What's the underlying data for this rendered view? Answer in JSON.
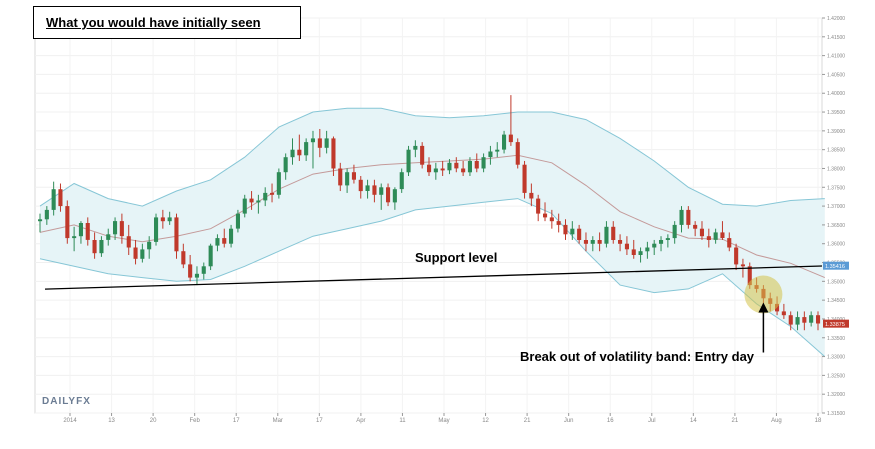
{
  "title": "What you would have initially seen",
  "brand": "DAILYFX",
  "colors": {
    "up": "#2e8b57",
    "down": "#c0392b",
    "band_fill": "#e6f4f7",
    "band_line": "#86c6d6",
    "midline": "#c49a9a",
    "support": "#000000",
    "highlight": "#d4c24a",
    "price_tag_red": "#c0392b",
    "price_tag_blue": "#5b9bd5"
  },
  "chart_data": {
    "type": "candlestick",
    "title": "",
    "xlabel": "",
    "ylabel": "",
    "x_tick_labels": [
      "2014",
      "13",
      "20",
      "Feb",
      "17",
      "Mar",
      "17",
      "Apr",
      "11",
      "May",
      "12",
      "21",
      "Jun",
      "16",
      "Jul",
      "14",
      "21",
      "Aug",
      "18"
    ],
    "y_tick_labels": [
      "1.42000",
      "1.41500",
      "1.41000",
      "1.40500",
      "1.40000",
      "1.39500",
      "1.39000",
      "1.38500",
      "1.38000",
      "1.37500",
      "1.37000",
      "1.36500",
      "1.36000",
      "1.35500",
      "1.35000",
      "1.34500",
      "1.34000",
      "1.33500",
      "1.33000",
      "1.32500",
      "1.32000",
      "1.31500"
    ],
    "ylim": [
      1.315,
      1.42
    ],
    "price_tags": [
      "1.35416",
      "1.33875"
    ],
    "grid": true,
    "annotations": {
      "support": "Support level",
      "entry": "Break out of volatility band: Entry day"
    },
    "ohlc": [
      [
        1.366,
        1.368,
        1.363,
        1.3665
      ],
      [
        1.3665,
        1.37,
        1.365,
        1.369
      ],
      [
        1.369,
        1.3765,
        1.3675,
        1.3745
      ],
      [
        1.3745,
        1.376,
        1.3685,
        1.37
      ],
      [
        1.37,
        1.3715,
        1.36,
        1.3615
      ],
      [
        1.3615,
        1.3645,
        1.358,
        1.362
      ],
      [
        1.362,
        1.366,
        1.36,
        1.3655
      ],
      [
        1.3655,
        1.367,
        1.3595,
        1.361
      ],
      [
        1.361,
        1.363,
        1.356,
        1.3575
      ],
      [
        1.3575,
        1.362,
        1.3565,
        1.361
      ],
      [
        1.361,
        1.364,
        1.3595,
        1.3625
      ],
      [
        1.3625,
        1.367,
        1.361,
        1.366
      ],
      [
        1.366,
        1.368,
        1.36,
        1.362
      ],
      [
        1.362,
        1.365,
        1.357,
        1.359
      ],
      [
        1.359,
        1.361,
        1.3545,
        1.356
      ],
      [
        1.356,
        1.36,
        1.355,
        1.3585
      ],
      [
        1.3585,
        1.362,
        1.356,
        1.3605
      ],
      [
        1.3605,
        1.368,
        1.3595,
        1.367
      ],
      [
        1.367,
        1.369,
        1.364,
        1.366
      ],
      [
        1.366,
        1.3685,
        1.365,
        1.367
      ],
      [
        1.367,
        1.368,
        1.356,
        1.358
      ],
      [
        1.358,
        1.36,
        1.3535,
        1.3545
      ],
      [
        1.3545,
        1.357,
        1.35,
        1.351
      ],
      [
        1.351,
        1.354,
        1.349,
        1.352
      ],
      [
        1.352,
        1.355,
        1.3505,
        1.354
      ],
      [
        1.354,
        1.36,
        1.353,
        1.3595
      ],
      [
        1.3595,
        1.3625,
        1.358,
        1.3615
      ],
      [
        1.3615,
        1.364,
        1.359,
        1.36
      ],
      [
        1.36,
        1.365,
        1.359,
        1.364
      ],
      [
        1.364,
        1.369,
        1.363,
        1.368
      ],
      [
        1.368,
        1.373,
        1.367,
        1.372
      ],
      [
        1.372,
        1.374,
        1.369,
        1.371
      ],
      [
        1.371,
        1.373,
        1.368,
        1.3715
      ],
      [
        1.3715,
        1.375,
        1.37,
        1.3735
      ],
      [
        1.3735,
        1.376,
        1.371,
        1.373
      ],
      [
        1.373,
        1.38,
        1.372,
        1.379
      ],
      [
        1.379,
        1.384,
        1.377,
        1.383
      ],
      [
        1.383,
        1.388,
        1.381,
        1.385
      ],
      [
        1.385,
        1.389,
        1.382,
        1.3835
      ],
      [
        1.3835,
        1.388,
        1.382,
        1.387
      ],
      [
        1.387,
        1.39,
        1.38,
        1.388
      ],
      [
        1.388,
        1.3905,
        1.383,
        1.3855
      ],
      [
        1.3855,
        1.39,
        1.384,
        1.388
      ],
      [
        1.388,
        1.3885,
        1.378,
        1.38
      ],
      [
        1.38,
        1.3815,
        1.374,
        1.3755
      ],
      [
        1.3755,
        1.38,
        1.3735,
        1.379
      ],
      [
        1.379,
        1.381,
        1.376,
        1.377
      ],
      [
        1.377,
        1.378,
        1.372,
        1.374
      ],
      [
        1.374,
        1.377,
        1.372,
        1.3755
      ],
      [
        1.3755,
        1.377,
        1.371,
        1.373
      ],
      [
        1.373,
        1.376,
        1.369,
        1.375
      ],
      [
        1.375,
        1.376,
        1.37,
        1.371
      ],
      [
        1.371,
        1.375,
        1.369,
        1.3745
      ],
      [
        1.3745,
        1.38,
        1.3735,
        1.379
      ],
      [
        1.379,
        1.386,
        1.378,
        1.385
      ],
      [
        1.385,
        1.3875,
        1.383,
        1.386
      ],
      [
        1.386,
        1.387,
        1.38,
        1.381
      ],
      [
        1.381,
        1.383,
        1.378,
        1.379
      ],
      [
        1.379,
        1.3815,
        1.377,
        1.38
      ],
      [
        1.38,
        1.382,
        1.378,
        1.3795
      ],
      [
        1.3795,
        1.3825,
        1.3785,
        1.3815
      ],
      [
        1.3815,
        1.383,
        1.379,
        1.38
      ],
      [
        1.38,
        1.382,
        1.378,
        1.379
      ],
      [
        1.379,
        1.383,
        1.378,
        1.382
      ],
      [
        1.382,
        1.384,
        1.379,
        1.38
      ],
      [
        1.38,
        1.384,
        1.379,
        1.383
      ],
      [
        1.383,
        1.386,
        1.381,
        1.3845
      ],
      [
        1.3845,
        1.387,
        1.383,
        1.385
      ],
      [
        1.385,
        1.39,
        1.384,
        1.389
      ],
      [
        1.389,
        1.3995,
        1.386,
        1.387
      ],
      [
        1.387,
        1.388,
        1.38,
        1.381
      ],
      [
        1.381,
        1.382,
        1.372,
        1.3735
      ],
      [
        1.3735,
        1.376,
        1.37,
        1.372
      ],
      [
        1.372,
        1.373,
        1.366,
        1.368
      ],
      [
        1.368,
        1.371,
        1.366,
        1.367
      ],
      [
        1.367,
        1.369,
        1.364,
        1.366
      ],
      [
        1.366,
        1.368,
        1.363,
        1.365
      ],
      [
        1.365,
        1.3665,
        1.361,
        1.3625
      ],
      [
        1.3625,
        1.366,
        1.361,
        1.364
      ],
      [
        1.364,
        1.365,
        1.36,
        1.361
      ],
      [
        1.361,
        1.363,
        1.358,
        1.36
      ],
      [
        1.36,
        1.362,
        1.358,
        1.361
      ],
      [
        1.361,
        1.363,
        1.358,
        1.36
      ],
      [
        1.36,
        1.366,
        1.359,
        1.3645
      ],
      [
        1.3645,
        1.366,
        1.36,
        1.361
      ],
      [
        1.361,
        1.3625,
        1.358,
        1.36
      ],
      [
        1.36,
        1.362,
        1.357,
        1.3585
      ],
      [
        1.3585,
        1.361,
        1.356,
        1.357
      ],
      [
        1.357,
        1.359,
        1.355,
        1.358
      ],
      [
        1.358,
        1.3605,
        1.356,
        1.359
      ],
      [
        1.359,
        1.361,
        1.357,
        1.36
      ],
      [
        1.36,
        1.362,
        1.358,
        1.361
      ],
      [
        1.361,
        1.3625,
        1.359,
        1.3615
      ],
      [
        1.3615,
        1.366,
        1.36,
        1.365
      ],
      [
        1.365,
        1.37,
        1.363,
        1.369
      ],
      [
        1.369,
        1.37,
        1.364,
        1.365
      ],
      [
        1.365,
        1.366,
        1.362,
        1.364
      ],
      [
        1.364,
        1.366,
        1.361,
        1.362
      ],
      [
        1.362,
        1.364,
        1.359,
        1.361
      ],
      [
        1.361,
        1.364,
        1.36,
        1.363
      ],
      [
        1.363,
        1.366,
        1.361,
        1.3615
      ],
      [
        1.3615,
        1.363,
        1.358,
        1.359
      ],
      [
        1.359,
        1.36,
        1.353,
        1.3545
      ],
      [
        1.3545,
        1.356,
        1.351,
        1.354
      ],
      [
        1.354,
        1.355,
        1.348,
        1.349
      ],
      [
        1.349,
        1.351,
        1.347,
        1.348
      ],
      [
        1.348,
        1.349,
        1.344,
        1.3455
      ],
      [
        1.3455,
        1.347,
        1.342,
        1.344
      ],
      [
        1.344,
        1.346,
        1.341,
        1.342
      ],
      [
        1.342,
        1.344,
        1.34,
        1.341
      ],
      [
        1.341,
        1.342,
        1.337,
        1.3385
      ],
      [
        1.3385,
        1.342,
        1.337,
        1.3405
      ],
      [
        1.3405,
        1.342,
        1.337,
        1.339
      ],
      [
        1.339,
        1.342,
        1.338,
        1.341
      ],
      [
        1.341,
        1.342,
        1.337,
        1.3388
      ]
    ],
    "bollinger_upper": [
      [
        0,
        1.37
      ],
      [
        5,
        1.376
      ],
      [
        10,
        1.372
      ],
      [
        15,
        1.37
      ],
      [
        20,
        1.374
      ],
      [
        25,
        1.377
      ],
      [
        30,
        1.383
      ],
      [
        35,
        1.391
      ],
      [
        40,
        1.395
      ],
      [
        45,
        1.396
      ],
      [
        50,
        1.396
      ],
      [
        55,
        1.394
      ],
      [
        60,
        1.3935
      ],
      [
        65,
        1.394
      ],
      [
        70,
        1.395
      ],
      [
        75,
        1.395
      ],
      [
        80,
        1.393
      ],
      [
        85,
        1.388
      ],
      [
        90,
        1.382
      ],
      [
        95,
        1.375
      ],
      [
        100,
        1.3705
      ],
      [
        105,
        1.37
      ],
      [
        110,
        1.3715
      ],
      [
        115,
        1.372
      ]
    ],
    "bollinger_lower": [
      [
        0,
        1.356
      ],
      [
        5,
        1.354
      ],
      [
        10,
        1.352
      ],
      [
        15,
        1.351
      ],
      [
        20,
        1.35
      ],
      [
        25,
        1.3505
      ],
      [
        30,
        1.354
      ],
      [
        35,
        1.358
      ],
      [
        40,
        1.362
      ],
      [
        45,
        1.364
      ],
      [
        50,
        1.366
      ],
      [
        55,
        1.369
      ],
      [
        60,
        1.37
      ],
      [
        65,
        1.371
      ],
      [
        70,
        1.372
      ],
      [
        75,
        1.368
      ],
      [
        80,
        1.358
      ],
      [
        85,
        1.349
      ],
      [
        90,
        1.347
      ],
      [
        95,
        1.348
      ],
      [
        100,
        1.352
      ],
      [
        105,
        1.344
      ],
      [
        110,
        1.338
      ],
      [
        115,
        1.33
      ]
    ],
    "bollinger_middle": [
      [
        0,
        1.363
      ],
      [
        5,
        1.365
      ],
      [
        10,
        1.362
      ],
      [
        15,
        1.3605
      ],
      [
        20,
        1.362
      ],
      [
        25,
        1.364
      ],
      [
        30,
        1.369
      ],
      [
        35,
        1.3745
      ],
      [
        40,
        1.3785
      ],
      [
        45,
        1.38
      ],
      [
        50,
        1.381
      ],
      [
        55,
        1.3815
      ],
      [
        60,
        1.382
      ],
      [
        65,
        1.3825
      ],
      [
        70,
        1.3835
      ],
      [
        75,
        1.3815
      ],
      [
        80,
        1.3755
      ],
      [
        85,
        1.3685
      ],
      [
        90,
        1.3645
      ],
      [
        95,
        1.3615
      ],
      [
        100,
        1.3612
      ],
      [
        105,
        1.357
      ],
      [
        110,
        1.3548
      ],
      [
        115,
        1.351
      ]
    ],
    "support_line": [
      [
        0,
        1.3479
      ],
      [
        115,
        1.3541
      ]
    ],
    "entry_index": 106
  }
}
